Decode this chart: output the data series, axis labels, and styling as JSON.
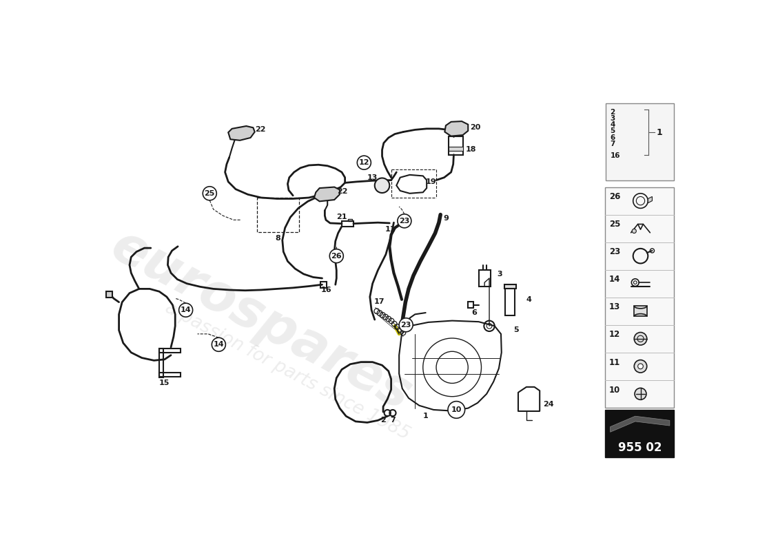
{
  "bg_color": "#ffffff",
  "line_color": "#1a1a1a",
  "watermark1": "eurospares",
  "watermark2": "a passion for parts since 1985",
  "part_code": "955 02"
}
